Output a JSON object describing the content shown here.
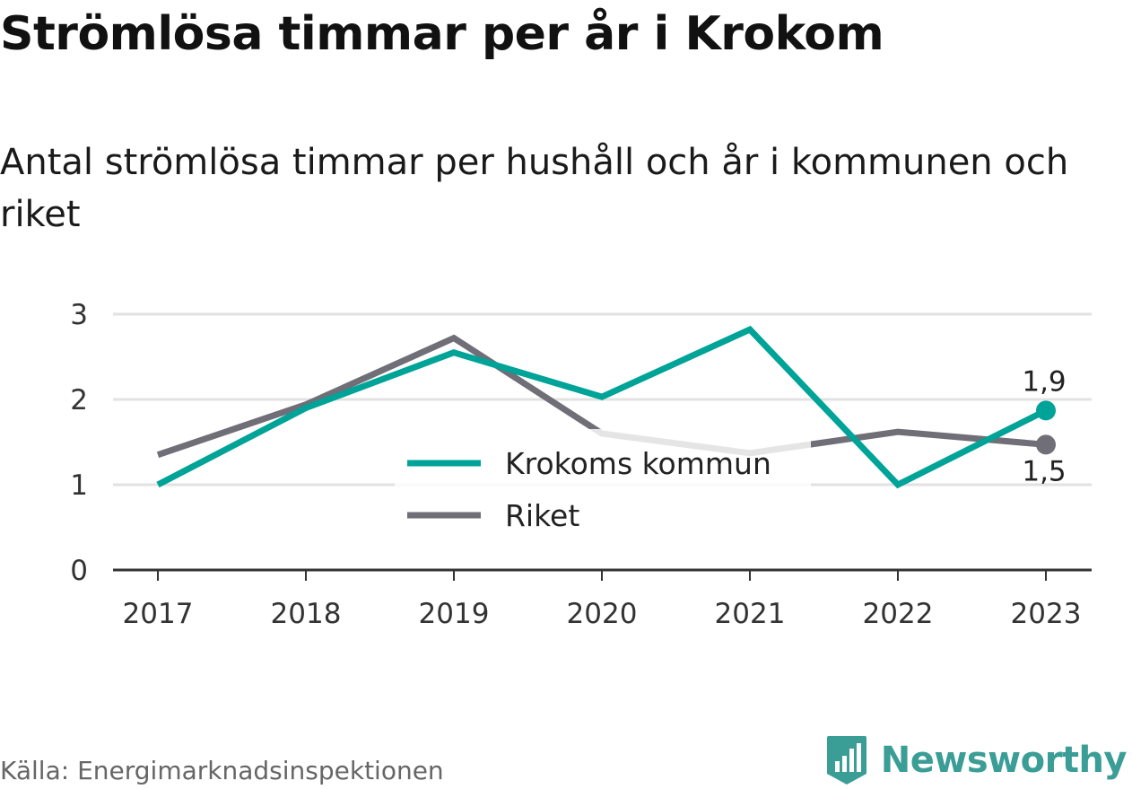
{
  "title": "Strömlösa timmar per år i Krokom",
  "subtitle": "Antal strömlösa timmar per hushåll och år i kommunen och riket",
  "source": "Källa: Energimarknadsinspektionen",
  "brand": "Newsworthy",
  "colors": {
    "krokom": "#00a397",
    "riket": "#706e76",
    "grid": "#e2e2e2",
    "axis": "#333333",
    "brand": "#3a9e96"
  },
  "chart_data": {
    "type": "line",
    "categories": [
      "2017",
      "2018",
      "2019",
      "2020",
      "2021",
      "2022",
      "2023"
    ],
    "series": [
      {
        "name": "Krokoms kommun",
        "values": [
          1.0,
          1.9,
          2.55,
          2.03,
          2.82,
          1.0,
          1.87
        ],
        "end_label": "1,9"
      },
      {
        "name": "Riket",
        "values": [
          1.35,
          1.94,
          2.72,
          1.6,
          1.37,
          1.62,
          1.47
        ],
        "end_label": "1,5"
      }
    ],
    "yticks": [
      "0",
      "1",
      "2",
      "3"
    ],
    "ylim": [
      0,
      3
    ],
    "grid": true,
    "legend": "center"
  }
}
